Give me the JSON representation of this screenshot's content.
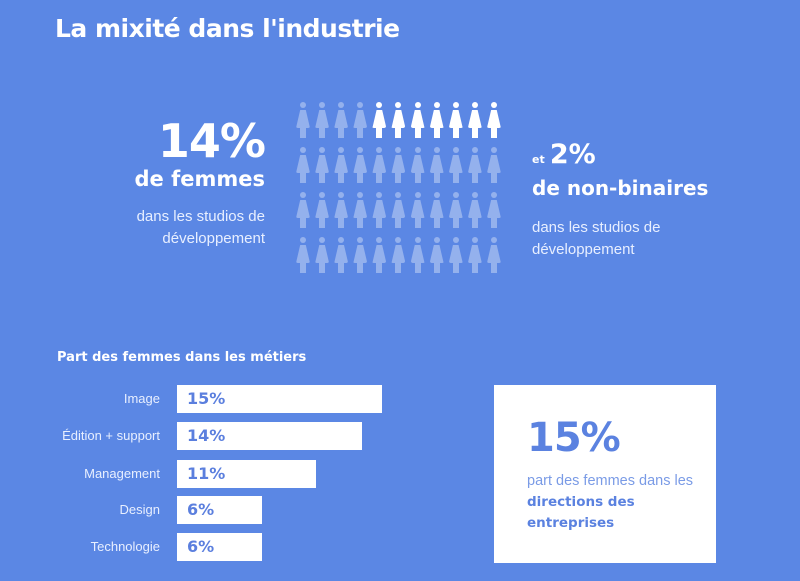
{
  "title": "La mixité dans l'industrie",
  "stat_women": {
    "value": "14%",
    "label": "de femmes",
    "description": "dans les studios de développement"
  },
  "stat_nonbinary": {
    "prefix": "et",
    "value": "2%",
    "label": "de non-binaires",
    "description": "dans les studios de développement"
  },
  "pictogram": {
    "rows": 4,
    "columns": 11,
    "highlighted_top_row_from_col": 5,
    "highlighted_count": 7,
    "icon": "person-woman-icon"
  },
  "bar_chart": {
    "title": "Part des femmes dans les métiers",
    "rows": [
      {
        "label": "Image",
        "value": "15%"
      },
      {
        "label": "Édition + support",
        "value": "14%"
      },
      {
        "label": "Management",
        "value": "11%"
      },
      {
        "label": "Design",
        "value": "6%"
      },
      {
        "label": "Technologie",
        "value": "6%"
      }
    ]
  },
  "callout": {
    "value": "15%",
    "text_prefix": "part des femmes dans les ",
    "text_bold": "directions des entreprises"
  },
  "colors": {
    "background": "#5b87e4",
    "bar": "#ffffff",
    "accent_text": "#5b82e0"
  },
  "chart_data": [
    {
      "type": "bar",
      "orientation": "horizontal",
      "title": "Part des femmes dans les métiers",
      "categories": [
        "Image",
        "Édition + support",
        "Management",
        "Design",
        "Technologie"
      ],
      "values": [
        15,
        14,
        11,
        6,
        6
      ],
      "unit": "%",
      "xlabel": "",
      "ylabel": "",
      "grid": false
    },
    {
      "type": "pictogram",
      "title": "La mixité dans l'industrie",
      "total_icons": 44,
      "highlighted_icons": 7,
      "annotations": [
        "14% de femmes dans les studios de développement",
        "et 2% de non-binaires dans les studios de développement"
      ]
    }
  ]
}
